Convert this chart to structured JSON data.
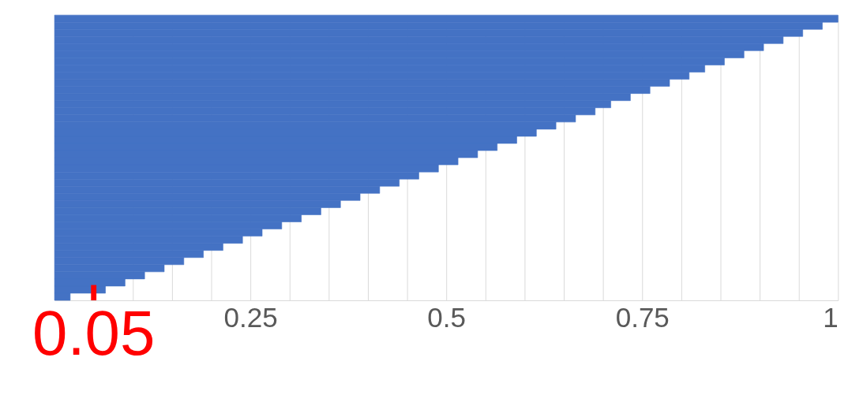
{
  "chart_data": {
    "type": "bar",
    "orientation": "horizontal",
    "color": "#4472c4",
    "categories": [
      null,
      null,
      null,
      null,
      null,
      null,
      null,
      null,
      null,
      null,
      null,
      null,
      null,
      null,
      null,
      null,
      null,
      null,
      null,
      null,
      null,
      null,
      null,
      null,
      null,
      null,
      null,
      null,
      null,
      null,
      null,
      null,
      null,
      null,
      null,
      null,
      null,
      null,
      null,
      null
    ],
    "values": [
      1,
      0.98,
      0.955,
      0.93,
      0.905,
      0.88,
      0.855,
      0.83,
      0.81,
      0.785,
      0.76,
      0.735,
      0.71,
      0.69,
      0.665,
      0.64,
      0.615,
      0.59,
      0.565,
      0.54,
      0.515,
      0.49,
      0.465,
      0.44,
      0.415,
      0.39,
      0.365,
      0.34,
      0.315,
      0.29,
      0.265,
      0.24,
      0.215,
      0.19,
      0.165,
      0.14,
      0.115,
      0.09,
      0.065,
      0.02
    ],
    "xlim": [
      0,
      1
    ],
    "xticks": [
      {
        "value": 0.1,
        "label": null
      },
      {
        "value": 0.15,
        "label": null
      },
      {
        "value": 0.2,
        "label": null
      },
      0.25,
      {
        "value": 0.3,
        "label": null
      },
      {
        "value": 0.35,
        "label": null
      },
      {
        "value": 0.4,
        "label": null
      },
      {
        "value": 0.45,
        "label": null
      },
      0.5,
      {
        "value": 0.55,
        "label": null
      },
      {
        "value": 0.6,
        "label": null
      },
      {
        "value": 0.65,
        "label": null
      },
      {
        "value": 0.7,
        "label": null
      },
      0.75,
      {
        "value": 0.8,
        "label": null
      },
      {
        "value": 0.85,
        "label": null
      },
      {
        "value": 0.9,
        "label": null
      },
      {
        "value": 0.95,
        "label": null
      },
      1
    ],
    "ref_lines": [
      {
        "axis": "x",
        "value": 0.05,
        "label": "0.05",
        "color": "#ff0000"
      }
    ],
    "grid": "x",
    "tick_labels": "x"
  }
}
